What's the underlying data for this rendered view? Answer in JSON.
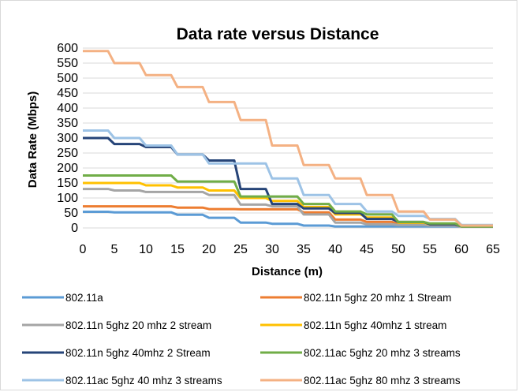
{
  "chart_data": {
    "type": "line",
    "title": "Data rate versus Distance",
    "xlabel": "Distance (m)",
    "ylabel": "Data Rate (Mbps)",
    "xlim": [
      0,
      65
    ],
    "ylim": [
      0,
      600
    ],
    "x_ticks": [
      "0",
      "5",
      "10",
      "15",
      "20",
      "25",
      "30",
      "35",
      "40",
      "45",
      "50",
      "55",
      "60",
      "65"
    ],
    "y_ticks": [
      "0",
      "50",
      "100",
      "150",
      "200",
      "250",
      "300",
      "350",
      "400",
      "450",
      "500",
      "550",
      "600"
    ],
    "grid": "horizontal",
    "legend_position": "bottom",
    "series": [
      {
        "name": "802.11a",
        "color": "#5b9bd5",
        "points": [
          [
            0,
            54
          ],
          [
            4,
            54
          ],
          [
            5,
            52
          ],
          [
            14,
            52
          ],
          [
            15,
            44
          ],
          [
            19,
            44
          ],
          [
            20,
            34
          ],
          [
            24,
            34
          ],
          [
            25,
            18
          ],
          [
            29,
            18
          ],
          [
            30,
            14
          ],
          [
            34,
            14
          ],
          [
            35,
            8
          ],
          [
            39,
            8
          ],
          [
            40,
            5
          ],
          [
            64,
            5
          ],
          [
            65,
            5
          ]
        ]
      },
      {
        "name": "802.11n 5ghz 20 mhz 1 Stream",
        "color": "#ed7d31",
        "points": [
          [
            0,
            72
          ],
          [
            9,
            72
          ],
          [
            10,
            72
          ],
          [
            14,
            72
          ],
          [
            15,
            68
          ],
          [
            19,
            68
          ],
          [
            20,
            63
          ],
          [
            24,
            63
          ],
          [
            25,
            62
          ],
          [
            34,
            62
          ],
          [
            35,
            52
          ],
          [
            39,
            52
          ],
          [
            40,
            28
          ],
          [
            44,
            28
          ],
          [
            45,
            20
          ],
          [
            49,
            20
          ],
          [
            50,
            12
          ],
          [
            54,
            12
          ],
          [
            55,
            8
          ],
          [
            59,
            8
          ],
          [
            60,
            5
          ],
          [
            65,
            5
          ]
        ]
      },
      {
        "name": "802.11n 5ghz 20 mhz 2 stream",
        "color": "#a5a5a5",
        "points": [
          [
            0,
            130
          ],
          [
            4,
            130
          ],
          [
            5,
            125
          ],
          [
            9,
            125
          ],
          [
            10,
            120
          ],
          [
            19,
            120
          ],
          [
            20,
            110
          ],
          [
            24,
            110
          ],
          [
            25,
            78
          ],
          [
            29,
            78
          ],
          [
            30,
            72
          ],
          [
            34,
            72
          ],
          [
            35,
            45
          ],
          [
            39,
            45
          ],
          [
            40,
            18
          ],
          [
            44,
            18
          ],
          [
            45,
            12
          ],
          [
            49,
            12
          ],
          [
            50,
            10
          ],
          [
            54,
            10
          ],
          [
            55,
            8
          ],
          [
            59,
            8
          ],
          [
            60,
            5
          ],
          [
            65,
            5
          ]
        ]
      },
      {
        "name": "802.11n 5ghz 40mhz  1 stream",
        "color": "#ffc000",
        "points": [
          [
            0,
            150
          ],
          [
            9,
            150
          ],
          [
            10,
            142
          ],
          [
            14,
            142
          ],
          [
            15,
            135
          ],
          [
            19,
            135
          ],
          [
            20,
            125
          ],
          [
            24,
            125
          ],
          [
            25,
            100
          ],
          [
            29,
            100
          ],
          [
            30,
            90
          ],
          [
            34,
            90
          ],
          [
            35,
            70
          ],
          [
            39,
            70
          ],
          [
            40,
            45
          ],
          [
            44,
            45
          ],
          [
            45,
            35
          ],
          [
            49,
            35
          ],
          [
            50,
            18
          ],
          [
            54,
            18
          ],
          [
            55,
            12
          ],
          [
            59,
            12
          ],
          [
            60,
            5
          ],
          [
            65,
            5
          ]
        ]
      },
      {
        "name": "802.11n 5ghz 40mhz 2  Stream",
        "color": "#264478",
        "points": [
          [
            0,
            300
          ],
          [
            4,
            300
          ],
          [
            5,
            280
          ],
          [
            9,
            280
          ],
          [
            10,
            270
          ],
          [
            14,
            270
          ],
          [
            15,
            245
          ],
          [
            19,
            245
          ],
          [
            20,
            225
          ],
          [
            24,
            225
          ],
          [
            25,
            130
          ],
          [
            29,
            130
          ],
          [
            30,
            80
          ],
          [
            34,
            80
          ],
          [
            35,
            65
          ],
          [
            39,
            65
          ],
          [
            40,
            50
          ],
          [
            44,
            50
          ],
          [
            45,
            30
          ],
          [
            49,
            30
          ],
          [
            50,
            20
          ],
          [
            54,
            20
          ],
          [
            55,
            12
          ],
          [
            59,
            12
          ],
          [
            60,
            5
          ],
          [
            65,
            5
          ]
        ]
      },
      {
        "name": "802.11ac 5ghz 20 mhz 3 streams",
        "color": "#70ad47",
        "points": [
          [
            0,
            175
          ],
          [
            14,
            175
          ],
          [
            15,
            155
          ],
          [
            24,
            155
          ],
          [
            25,
            105
          ],
          [
            34,
            105
          ],
          [
            35,
            80
          ],
          [
            39,
            80
          ],
          [
            40,
            55
          ],
          [
            44,
            55
          ],
          [
            45,
            45
          ],
          [
            49,
            45
          ],
          [
            50,
            20
          ],
          [
            54,
            20
          ],
          [
            55,
            15
          ],
          [
            59,
            15
          ],
          [
            60,
            5
          ],
          [
            65,
            5
          ]
        ]
      },
      {
        "name": "802.11ac 5ghz 40 mhz 3 streams",
        "color": "#9dc3e6",
        "points": [
          [
            0,
            325
          ],
          [
            4,
            325
          ],
          [
            5,
            300
          ],
          [
            9,
            300
          ],
          [
            10,
            275
          ],
          [
            14,
            275
          ],
          [
            15,
            245
          ],
          [
            19,
            245
          ],
          [
            20,
            215
          ],
          [
            29,
            215
          ],
          [
            30,
            165
          ],
          [
            34,
            165
          ],
          [
            35,
            110
          ],
          [
            39,
            110
          ],
          [
            40,
            80
          ],
          [
            44,
            80
          ],
          [
            45,
            55
          ],
          [
            49,
            55
          ],
          [
            50,
            40
          ],
          [
            54,
            40
          ],
          [
            55,
            30
          ],
          [
            59,
            30
          ],
          [
            60,
            10
          ],
          [
            65,
            10
          ]
        ]
      },
      {
        "name": "802.11ac 5ghz 80 mhz 3 streams",
        "color": "#f4b183",
        "points": [
          [
            0,
            590
          ],
          [
            4,
            590
          ],
          [
            5,
            550
          ],
          [
            9,
            550
          ],
          [
            10,
            510
          ],
          [
            14,
            510
          ],
          [
            15,
            470
          ],
          [
            19,
            470
          ],
          [
            20,
            420
          ],
          [
            24,
            420
          ],
          [
            25,
            360
          ],
          [
            29,
            360
          ],
          [
            30,
            275
          ],
          [
            34,
            275
          ],
          [
            35,
            210
          ],
          [
            39,
            210
          ],
          [
            40,
            165
          ],
          [
            44,
            165
          ],
          [
            45,
            110
          ],
          [
            49,
            110
          ],
          [
            50,
            55
          ],
          [
            54,
            55
          ],
          [
            55,
            28
          ],
          [
            59,
            28
          ],
          [
            60,
            8
          ],
          [
            65,
            8
          ]
        ]
      }
    ]
  }
}
